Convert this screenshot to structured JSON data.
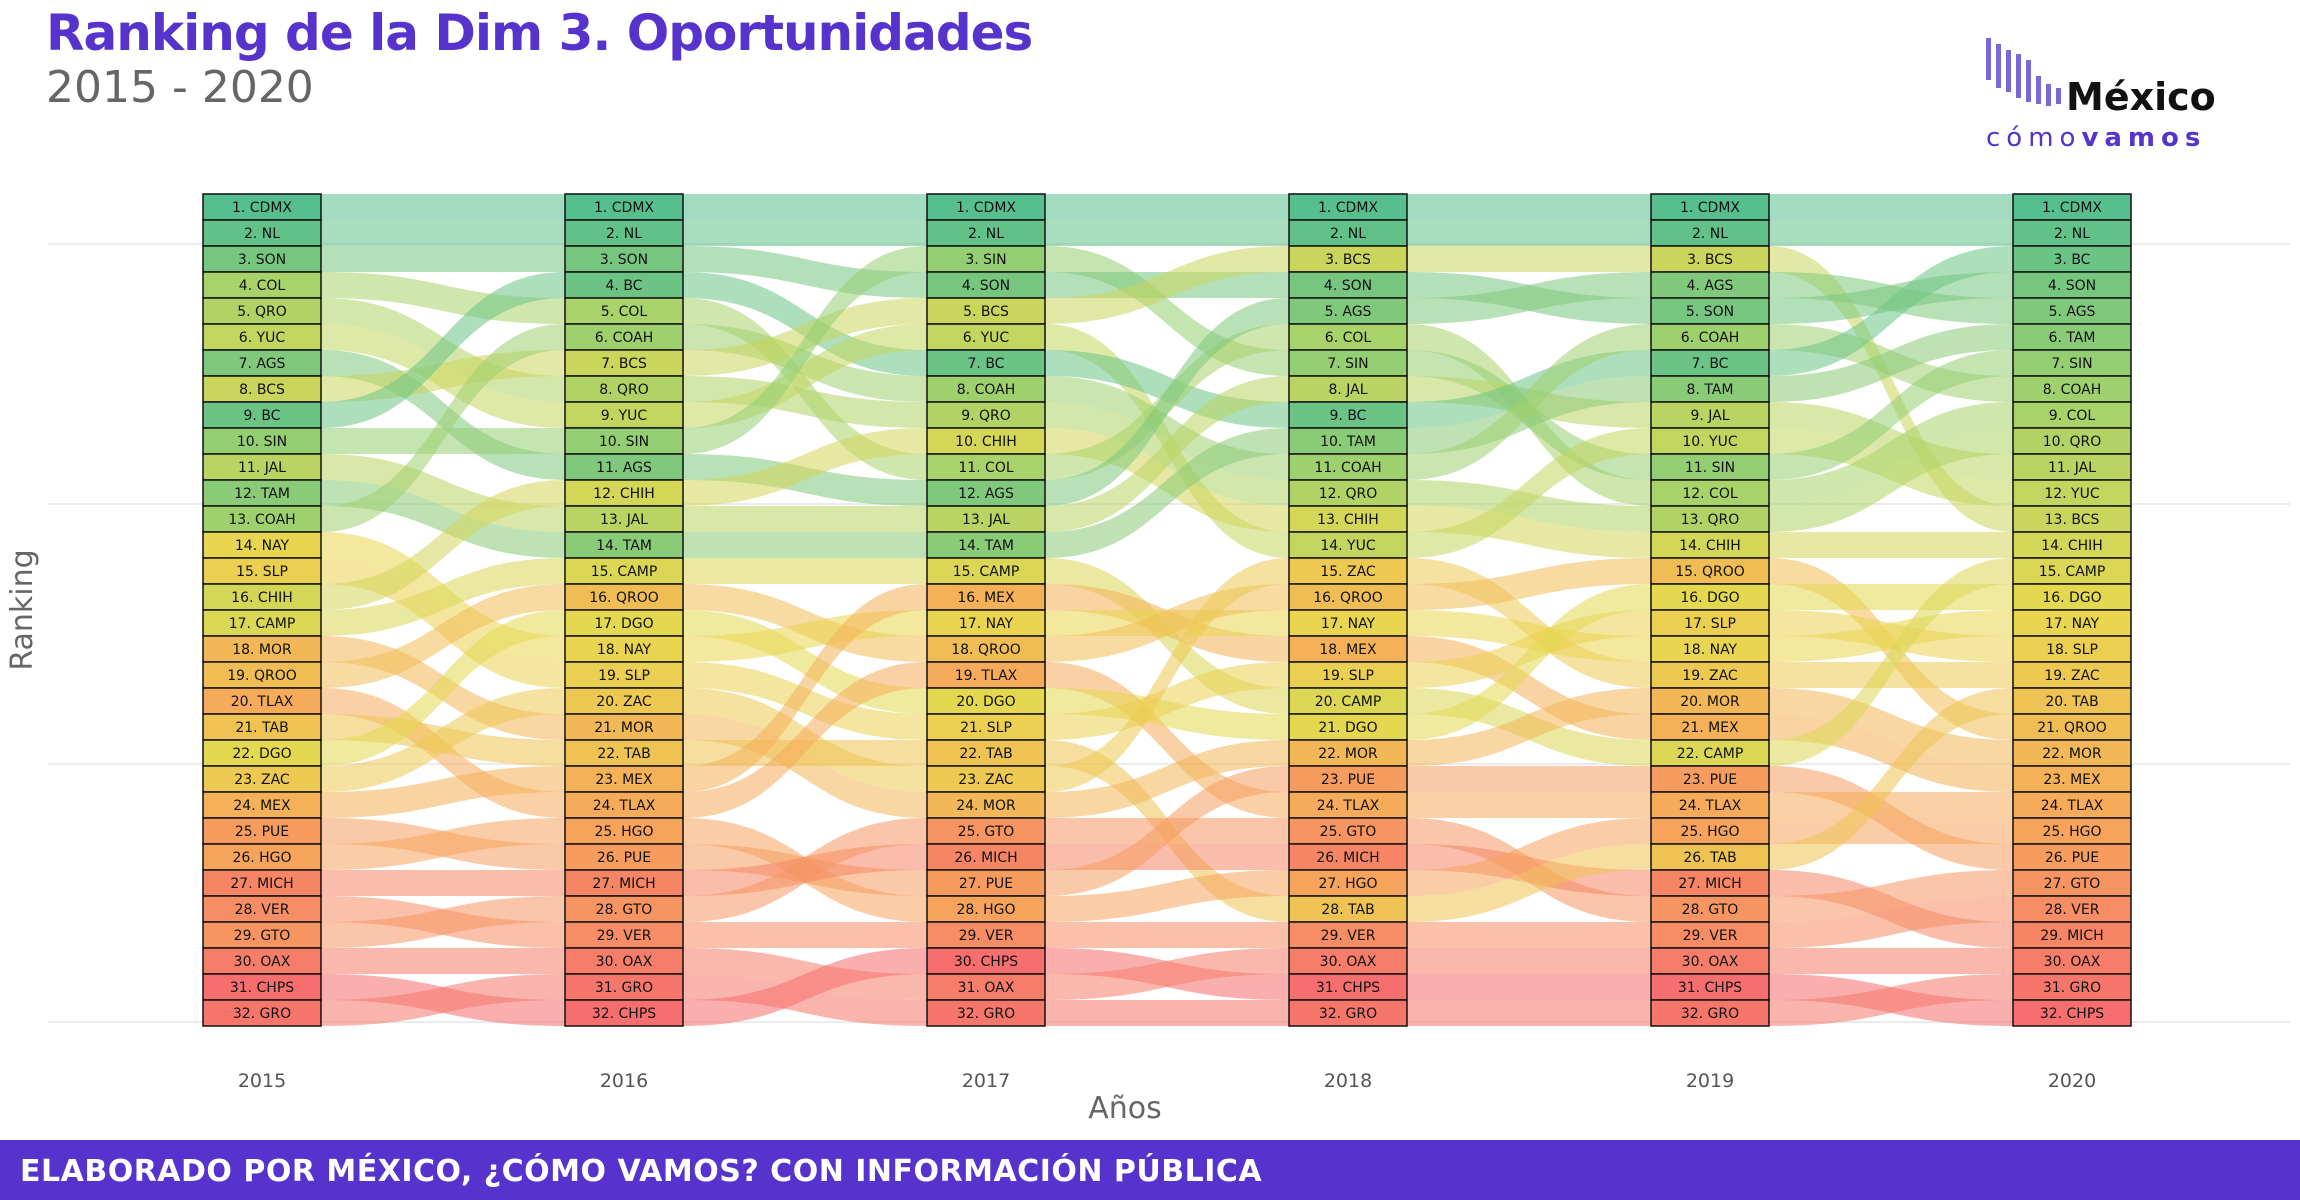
{
  "title": "Ranking de la Dim 3. Oportunidades",
  "subtitle": "2015 - 2020",
  "logo": {
    "brand": "México",
    "tagline_light": "cómo",
    "tagline_bold": "vamos"
  },
  "footer": "ELABORADO POR MÉXICO, ¿CÓMO VAMOS? CON INFORMACIÓN PÚBLICA",
  "chart_data": {
    "type": "alluvial",
    "xlabel": "Años",
    "ylabel": "Ranking",
    "years": [
      "2015",
      "2016",
      "2017",
      "2018",
      "2019",
      "2020"
    ],
    "rankings": [
      [
        "CDMX",
        "NL",
        "SON",
        "COL",
        "QRO",
        "YUC",
        "AGS",
        "BCS",
        "BC",
        "SIN",
        "JAL",
        "TAM",
        "COAH",
        "NAY",
        "SLP",
        "CHIH",
        "CAMP",
        "MOR",
        "QROO",
        "TLAX",
        "TAB",
        "DGO",
        "ZAC",
        "MEX",
        "PUE",
        "HGO",
        "MICH",
        "VER",
        "GTO",
        "OAX",
        "CHPS",
        "GRO"
      ],
      [
        "CDMX",
        "NL",
        "SON",
        "BC",
        "COL",
        "COAH",
        "BCS",
        "QRO",
        "YUC",
        "SIN",
        "AGS",
        "CHIH",
        "JAL",
        "TAM",
        "CAMP",
        "QROO",
        "DGO",
        "NAY",
        "SLP",
        "ZAC",
        "MOR",
        "TAB",
        "MEX",
        "TLAX",
        "HGO",
        "PUE",
        "MICH",
        "GTO",
        "VER",
        "OAX",
        "GRO",
        "CHPS"
      ],
      [
        "CDMX",
        "NL",
        "SIN",
        "SON",
        "BCS",
        "YUC",
        "BC",
        "COAH",
        "QRO",
        "CHIH",
        "COL",
        "AGS",
        "JAL",
        "TAM",
        "CAMP",
        "MEX",
        "NAY",
        "QROO",
        "TLAX",
        "DGO",
        "SLP",
        "TAB",
        "ZAC",
        "MOR",
        "GTO",
        "MICH",
        "PUE",
        "HGO",
        "VER",
        "CHPS",
        "OAX",
        "GRO"
      ],
      [
        "CDMX",
        "NL",
        "BCS",
        "SON",
        "AGS",
        "COL",
        "SIN",
        "JAL",
        "BC",
        "TAM",
        "COAH",
        "QRO",
        "CHIH",
        "YUC",
        "ZAC",
        "QROO",
        "NAY",
        "MEX",
        "SLP",
        "CAMP",
        "DGO",
        "MOR",
        "PUE",
        "TLAX",
        "GTO",
        "MICH",
        "HGO",
        "TAB",
        "VER",
        "OAX",
        "CHPS",
        "GRO"
      ],
      [
        "CDMX",
        "NL",
        "BCS",
        "AGS",
        "SON",
        "COAH",
        "BC",
        "TAM",
        "JAL",
        "YUC",
        "SIN",
        "COL",
        "QRO",
        "CHIH",
        "QROO",
        "DGO",
        "SLP",
        "NAY",
        "ZAC",
        "MOR",
        "MEX",
        "CAMP",
        "PUE",
        "TLAX",
        "HGO",
        "TAB",
        "MICH",
        "GTO",
        "VER",
        "OAX",
        "CHPS",
        "GRO"
      ],
      [
        "CDMX",
        "NL",
        "BC",
        "SON",
        "AGS",
        "TAM",
        "SIN",
        "COAH",
        "COL",
        "QRO",
        "JAL",
        "YUC",
        "BCS",
        "CHIH",
        "CAMP",
        "DGO",
        "NAY",
        "SLP",
        "ZAC",
        "TAB",
        "QROO",
        "MOR",
        "MEX",
        "TLAX",
        "HGO",
        "PUE",
        "GTO",
        "VER",
        "MICH",
        "OAX",
        "GRO",
        "CHPS"
      ]
    ],
    "color_scale": [
      "#57bf8e",
      "#a6d26b",
      "#e8d84e",
      "#f6aa5a",
      "#f66e6e"
    ],
    "gridlines": true
  }
}
